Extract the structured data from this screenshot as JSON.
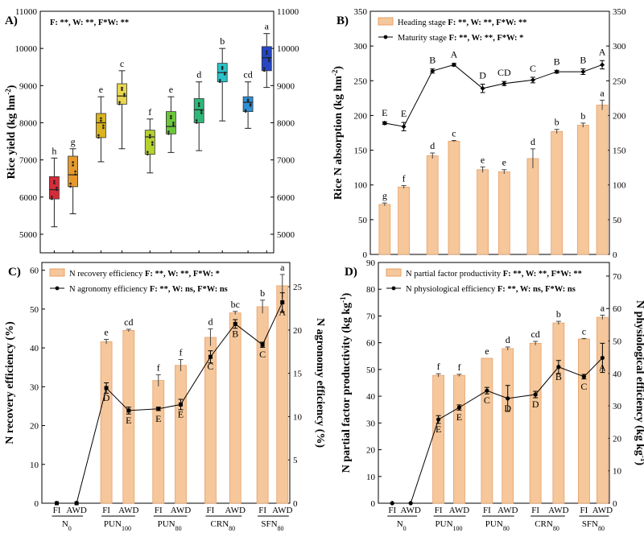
{
  "groups": [
    "N0",
    "PUN100",
    "PUN80",
    "CRN80",
    "SFN80"
  ],
  "group_labels": [
    {
      "base": "N",
      "sub": "0"
    },
    {
      "base": "PUN",
      "sub": "100"
    },
    {
      "base": "PUN",
      "sub": "80"
    },
    {
      "base": "CRN",
      "sub": "80"
    },
    {
      "base": "SFN",
      "sub": "80"
    }
  ],
  "treatments": [
    "FI",
    "AWD"
  ],
  "chart_data": [
    {
      "id": "A",
      "panel_label": "A)",
      "type": "box",
      "ylabel": "Rice yield (kg hm-2)",
      "ylabel_parts": {
        "main": "Rice yield (kg hm",
        "sup": "-2",
        "end": ")"
      },
      "stats_text": "F: **, W: **,  F*W: **",
      "ylim": [
        4500,
        11000
      ],
      "yticks": [
        5000,
        6000,
        7000,
        8000,
        9000,
        10000,
        11000
      ],
      "right_axis": {
        "ylim": [
          4500,
          11000
        ],
        "yticks": [
          5000,
          6000,
          7000,
          8000,
          9000,
          10000,
          11000
        ]
      },
      "boxes": [
        {
          "q1": 5950,
          "median": 6200,
          "q3": 6550,
          "min": 5200,
          "max": 7050,
          "letter": "h",
          "color": "#d62c3a"
        },
        {
          "q1": 6280,
          "median": 6600,
          "q3": 7100,
          "min": 5550,
          "max": 7300,
          "letter": "g",
          "color": "#e69a2e"
        },
        {
          "q1": 7600,
          "median": 8000,
          "q3": 8250,
          "min": 6950,
          "max": 8700,
          "letter": "e",
          "color": "#d9b321"
        },
        {
          "q1": 8500,
          "median": 8720,
          "q3": 9050,
          "min": 7300,
          "max": 9400,
          "letter": "c",
          "color": "#e8d64f"
        },
        {
          "q1": 7150,
          "median": 7620,
          "q3": 7800,
          "min": 6650,
          "max": 8100,
          "letter": "f",
          "color": "#b4d22d"
        },
        {
          "q1": 7700,
          "median": 7900,
          "q3": 8300,
          "min": 7200,
          "max": 8700,
          "letter": "e",
          "color": "#6cc63b"
        },
        {
          "q1": 8000,
          "median": 8350,
          "q3": 8650,
          "min": 7250,
          "max": 9100,
          "letter": "d",
          "color": "#2db879"
        },
        {
          "q1": 9100,
          "median": 9350,
          "q3": 9600,
          "min": 8050,
          "max": 10000,
          "letter": "b",
          "color": "#29c3c8"
        },
        {
          "q1": 8300,
          "median": 8550,
          "q3": 8700,
          "min": 7850,
          "max": 9100,
          "letter": "cd",
          "color": "#2d8fd4"
        },
        {
          "q1": 9400,
          "median": 9750,
          "q3": 10050,
          "min": 8950,
          "max": 10400,
          "letter": "a",
          "color": "#2547c4"
        }
      ]
    },
    {
      "id": "B",
      "panel_label": "B)",
      "type": "bar+line",
      "ylabel": "Rice N absorption (kg hm-2)",
      "ylabel_parts": {
        "main": "Rice N absorption (kg hm",
        "sup": "-2",
        "end": ")"
      },
      "ylim": [
        0,
        350
      ],
      "yticks": [
        0,
        50,
        100,
        150,
        200,
        250,
        300,
        350
      ],
      "right_axis": {
        "ylim": [
          0,
          350
        ],
        "yticks": [
          0,
          50,
          100,
          150,
          200,
          250,
          300,
          350
        ]
      },
      "series": [
        {
          "name": "Heading stage",
          "stats": "F: **, W: **,  F*W: **",
          "kind": "bar",
          "values": [
            72,
            97,
            142,
            163,
            122,
            119,
            138,
            177,
            186,
            215
          ],
          "errors": [
            2,
            2,
            4,
            1,
            4,
            3,
            14,
            3,
            3,
            7
          ],
          "letters": [
            "g",
            "f",
            "d",
            "c",
            "e",
            "e",
            "d",
            "b",
            "b",
            "a"
          ]
        },
        {
          "name": "Maturity stage",
          "stats": "F: **, W: **,  F*W: *",
          "kind": "line",
          "values": [
            189,
            184,
            264,
            273,
            239,
            246,
            251,
            263,
            263,
            273
          ],
          "errors": [
            2,
            6,
            3,
            2,
            6,
            3,
            4,
            2,
            4,
            6
          ],
          "letters": [
            "E",
            "E",
            "B",
            "A",
            "D",
            "CD",
            "C",
            "B",
            "B",
            "A"
          ]
        }
      ]
    },
    {
      "id": "C",
      "panel_label": "C)",
      "type": "bar+line",
      "ylabel": "N recovery efficiency (%)",
      "ylabel_right": "N agronomy efficiency (%)",
      "ylim": [
        0,
        62
      ],
      "yticks": [
        0,
        10,
        20,
        30,
        40,
        50,
        60
      ],
      "right_axis": {
        "ylim": [
          0,
          27.8
        ],
        "yticks": [
          0,
          5,
          10,
          15,
          20,
          25
        ]
      },
      "series": [
        {
          "name": "N recovery efficiency",
          "stats": "F: **, W: **,  F*W: *",
          "kind": "bar",
          "axis": "left",
          "values": [
            0,
            0,
            41.6,
            44.5,
            31.6,
            35.5,
            42.7,
            49.0,
            50.6,
            56.0
          ],
          "errors": [
            0,
            0,
            0.6,
            0.3,
            1.5,
            1.5,
            2.2,
            0.4,
            1.7,
            2.9
          ],
          "letters": [
            "",
            "",
            "e",
            "cd",
            "f",
            "f",
            "d",
            "bc",
            "b",
            "a"
          ]
        },
        {
          "name": "N agronomy efficiency",
          "stats": "F: **, W: ns,  F*W: ns",
          "kind": "line",
          "axis": "right",
          "values": [
            0,
            0,
            13.3,
            10.7,
            10.9,
            11.4,
            16.9,
            20.7,
            18.3,
            23.2
          ],
          "errors": [
            0,
            0,
            0.6,
            0.4,
            0.2,
            0.6,
            0.7,
            0.5,
            0.3,
            1.1
          ],
          "letters": [
            "",
            "",
            "D",
            "E",
            "E",
            "E",
            "C",
            "B",
            "C",
            "A"
          ]
        }
      ]
    },
    {
      "id": "D",
      "panel_label": "D)",
      "type": "bar+line",
      "ylabel": "N partial factor productivity (kg kg-1)",
      "ylabel_parts": {
        "main": "N partial factor productivity (kg kg",
        "sup": "-1",
        "end": ")"
      },
      "ylabel_right": "N physiological efficiency (kg kg-1)",
      "ylabel_right_parts": {
        "main": "N physiological efficiency (kg kg",
        "sup": "-1",
        "end": ")"
      },
      "ylim": [
        0,
        90
      ],
      "yticks": [
        0,
        10,
        20,
        30,
        40,
        50,
        60,
        70,
        80,
        90
      ],
      "right_axis": {
        "ylim": [
          0,
          74.2
        ],
        "yticks": [
          0,
          10,
          20,
          30,
          40,
          50,
          60,
          70
        ]
      },
      "series": [
        {
          "name": "N partial factor productivity",
          "stats": "F: **, W: **,  F*W: **",
          "kind": "bar",
          "axis": "left",
          "values": [
            0,
            0,
            47.8,
            47.8,
            54.2,
            57.8,
            59.8,
            67.4,
            61.4,
            69.5
          ],
          "errors": [
            0,
            0,
            0.6,
            0.4,
            0,
            0.6,
            0.7,
            0.6,
            0.2,
            0.8
          ],
          "letters": [
            "",
            "",
            "f",
            "f",
            "e",
            "d",
            "cd",
            "b",
            "c",
            "a"
          ]
        },
        {
          "name": "N physiological efficiency",
          "stats": "F: **, W: ns,  F*W: ns",
          "kind": "line",
          "axis": "right",
          "values": [
            0,
            0,
            25.8,
            29.5,
            34.7,
            32.3,
            33.5,
            42.0,
            39.0,
            44.8
          ],
          "errors": [
            0,
            0,
            1.2,
            0.8,
            1.0,
            4.0,
            1.0,
            2.0,
            0.7,
            4.5
          ],
          "letters": [
            "",
            "",
            "E",
            "E",
            "C",
            "D",
            "D",
            "B",
            "C",
            "A"
          ]
        }
      ]
    }
  ]
}
